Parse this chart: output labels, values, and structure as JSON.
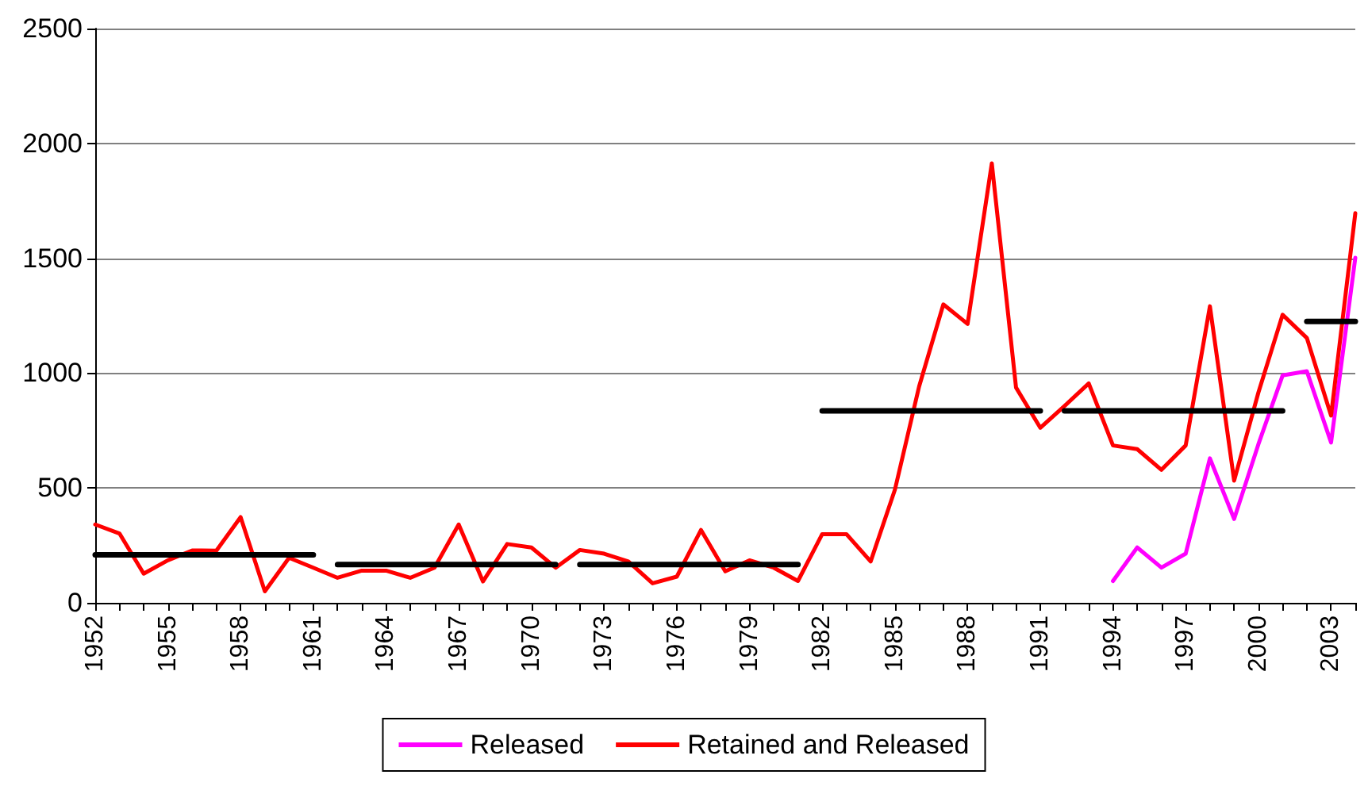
{
  "chart_data": {
    "type": "line",
    "categories": [
      "1952",
      null,
      null,
      "1955",
      null,
      null,
      "1958",
      null,
      null,
      "1961",
      null,
      null,
      "1964",
      null,
      null,
      "1967",
      null,
      null,
      "1970",
      null,
      null,
      "1973",
      null,
      null,
      "1976",
      null,
      null,
      "1979",
      null,
      null,
      "1982",
      null,
      null,
      "1985",
      null,
      null,
      "1988",
      null,
      null,
      "1991",
      null,
      null,
      "1994",
      null,
      null,
      "1997",
      null,
      null,
      "2000",
      null,
      null,
      "2003",
      null
    ],
    "ylim": [
      0,
      2500
    ],
    "yticks": [
      0,
      500,
      1000,
      1500,
      2000,
      2500
    ],
    "grid": "y",
    "legend": "bottom",
    "marker": "none",
    "line_style": "solid",
    "series": [
      {
        "name": "Released",
        "color": "#ff00ff",
        "values": [
          null,
          null,
          null,
          null,
          null,
          null,
          null,
          null,
          null,
          null,
          null,
          null,
          null,
          null,
          null,
          null,
          null,
          null,
          null,
          null,
          null,
          null,
          null,
          null,
          null,
          null,
          null,
          null,
          null,
          null,
          null,
          null,
          null,
          null,
          null,
          null,
          null,
          null,
          null,
          null,
          null,
          null,
          95,
          241,
          153,
          214,
          629,
          365,
          690,
          990,
          1008,
          698,
          1502
        ]
      },
      {
        "name": "Retained and Released",
        "color": "#ff0000",
        "values": [
          341,
          302,
          127,
          185,
          228,
          227,
          373,
          50,
          196,
          153,
          109,
          140,
          140,
          109,
          153,
          341,
          93,
          256,
          241,
          153,
          230,
          214,
          180,
          85,
          114,
          317,
          137,
          185,
          153,
          95,
          299,
          299,
          180,
          492,
          942,
          1299,
          1214,
          1913,
          937,
          762,
          857,
          955,
          685,
          669,
          579,
          685,
          1291,
          532,
          915,
          1254,
          1153,
          815,
          1696
        ]
      },
      {
        "color": "#000000",
        "values": [
          209,
          209,
          209,
          209,
          209,
          209,
          209,
          209,
          209,
          209,
          null,
          null,
          null,
          null,
          null,
          null,
          null,
          null,
          null,
          null,
          null,
          null,
          null,
          null,
          null,
          null,
          null,
          null,
          null,
          null,
          null,
          null,
          null,
          null,
          null,
          null,
          null,
          null,
          null,
          null,
          null,
          null,
          null,
          null,
          null,
          null,
          null,
          null,
          null,
          null,
          null,
          null,
          null
        ]
      },
      {
        "color": "#000000",
        "values": [
          null,
          null,
          null,
          null,
          null,
          null,
          null,
          null,
          null,
          null,
          167,
          167,
          167,
          167,
          167,
          167,
          167,
          167,
          167,
          167,
          null,
          null,
          null,
          null,
          null,
          null,
          null,
          null,
          null,
          null,
          null,
          null,
          null,
          null,
          null,
          null,
          null,
          null,
          null,
          null,
          null,
          null,
          null,
          null,
          null,
          null,
          null,
          null,
          null,
          null,
          null,
          null,
          null
        ]
      },
      {
        "color": "#000000",
        "values": [
          null,
          null,
          null,
          null,
          null,
          null,
          null,
          null,
          null,
          null,
          null,
          null,
          null,
          null,
          null,
          null,
          null,
          null,
          null,
          null,
          167,
          167,
          167,
          167,
          167,
          167,
          167,
          167,
          167,
          167,
          null,
          null,
          null,
          null,
          null,
          null,
          null,
          null,
          null,
          null,
          null,
          null,
          null,
          null,
          null,
          null,
          null,
          null,
          null,
          null,
          null,
          null,
          null
        ]
      },
      {
        "color": "#000000",
        "values": [
          null,
          null,
          null,
          null,
          null,
          null,
          null,
          null,
          null,
          null,
          null,
          null,
          null,
          null,
          null,
          null,
          null,
          null,
          null,
          null,
          null,
          null,
          null,
          null,
          null,
          null,
          null,
          null,
          null,
          null,
          836,
          836,
          836,
          836,
          836,
          836,
          836,
          836,
          836,
          836,
          null,
          null,
          null,
          null,
          null,
          null,
          null,
          null,
          null,
          null,
          null,
          null,
          null
        ]
      },
      {
        "color": "#000000",
        "values": [
          null,
          null,
          null,
          null,
          null,
          null,
          null,
          null,
          null,
          null,
          null,
          null,
          null,
          null,
          null,
          null,
          null,
          null,
          null,
          null,
          null,
          null,
          null,
          null,
          null,
          null,
          null,
          null,
          null,
          null,
          null,
          null,
          null,
          null,
          null,
          null,
          null,
          null,
          null,
          null,
          836,
          836,
          836,
          836,
          836,
          836,
          836,
          836,
          836,
          836,
          null,
          null,
          null
        ]
      },
      {
        "color": "#000000",
        "values": [
          null,
          null,
          null,
          null,
          null,
          null,
          null,
          null,
          null,
          null,
          null,
          null,
          null,
          null,
          null,
          null,
          null,
          null,
          null,
          null,
          null,
          null,
          null,
          null,
          null,
          null,
          null,
          null,
          null,
          null,
          null,
          null,
          null,
          null,
          null,
          null,
          null,
          null,
          null,
          null,
          null,
          null,
          null,
          null,
          null,
          null,
          null,
          null,
          null,
          null,
          1225,
          1225,
          1225
        ]
      }
    ]
  }
}
